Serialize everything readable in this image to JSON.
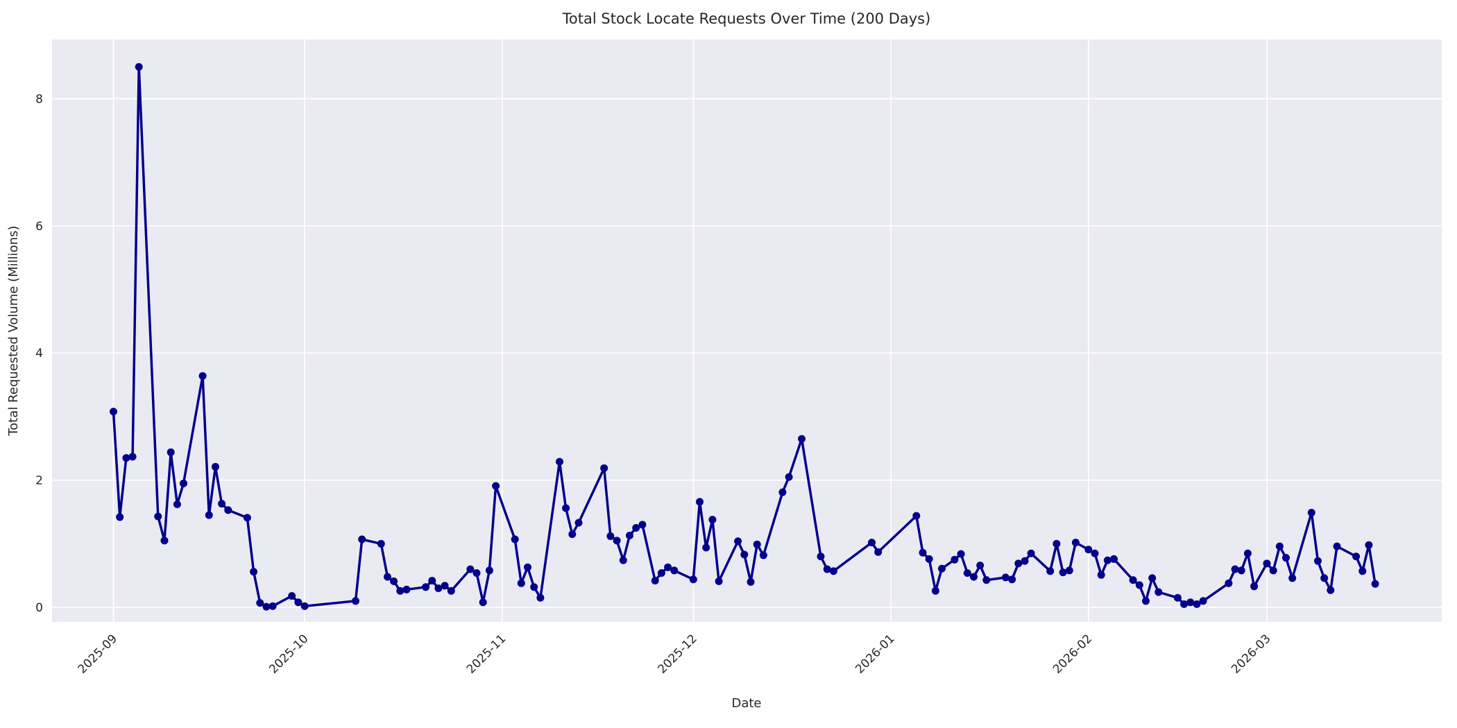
{
  "figure": {
    "background_color": "#ffffff"
  },
  "chart_data": {
    "type": "line",
    "title": "Total Stock Locate Requests Over Time (200 Days)",
    "xlabel": "Date",
    "ylabel": "Total Requested Volume (Millions)",
    "x_tick_labels": [
      "2025-09",
      "2025-10",
      "2025-11",
      "2025-12",
      "2026-01",
      "2026-02",
      "2026-03"
    ],
    "x_tick_dates": [
      "2025-09-01",
      "2025-10-01",
      "2025-11-01",
      "2025-12-01",
      "2026-01-01",
      "2026-02-01",
      "2026-03-01"
    ],
    "y_ticks": [
      0,
      2,
      4,
      6,
      8
    ],
    "ylim": [
      -0.23,
      8.93
    ],
    "start_date": "2025-09-01",
    "span_days": 200,
    "grid": true,
    "legend": false,
    "plot_background": "#EAEAF2",
    "grid_color": "#ffffff",
    "line_color": "#00008B",
    "marker": "circle",
    "series": [
      {
        "name": "Total Requested Volume",
        "dates": [
          "2025-09-01",
          "2025-09-02",
          "2025-09-03",
          "2025-09-04",
          "2025-09-05",
          "2025-09-08",
          "2025-09-09",
          "2025-09-10",
          "2025-09-11",
          "2025-09-12",
          "2025-09-15",
          "2025-09-16",
          "2025-09-17",
          "2025-09-18",
          "2025-09-19",
          "2025-09-22",
          "2025-09-23",
          "2025-09-24",
          "2025-09-25",
          "2025-09-26",
          "2025-09-29",
          "2025-09-30",
          "2025-10-01",
          "2025-10-09",
          "2025-10-10",
          "2025-10-13",
          "2025-10-14",
          "2025-10-15",
          "2025-10-16",
          "2025-10-17",
          "2025-10-20",
          "2025-10-21",
          "2025-10-22",
          "2025-10-23",
          "2025-10-24",
          "2025-10-27",
          "2025-10-28",
          "2025-10-29",
          "2025-10-30",
          "2025-10-31",
          "2025-11-03",
          "2025-11-04",
          "2025-11-05",
          "2025-11-06",
          "2025-11-07",
          "2025-11-10",
          "2025-11-11",
          "2025-11-12",
          "2025-11-13",
          "2025-11-17",
          "2025-11-18",
          "2025-11-19",
          "2025-11-20",
          "2025-11-21",
          "2025-11-22",
          "2025-11-23",
          "2025-11-25",
          "2025-11-26",
          "2025-11-27",
          "2025-11-28",
          "2025-12-01",
          "2025-12-02",
          "2025-12-03",
          "2025-12-04",
          "2025-12-05",
          "2025-12-08",
          "2025-12-09",
          "2025-12-10",
          "2025-12-11",
          "2025-12-12",
          "2025-12-15",
          "2025-12-16",
          "2025-12-18",
          "2025-12-21",
          "2025-12-22",
          "2025-12-23",
          "2025-12-29",
          "2025-12-30",
          "2026-01-05",
          "2026-01-06",
          "2026-01-07",
          "2026-01-08",
          "2026-01-09",
          "2026-01-11",
          "2026-01-12",
          "2026-01-13",
          "2026-01-14",
          "2026-01-15",
          "2026-01-16",
          "2026-01-19",
          "2026-01-20",
          "2026-01-21",
          "2026-01-22",
          "2026-01-23",
          "2026-01-26",
          "2026-01-27",
          "2026-01-28",
          "2026-01-29",
          "2026-01-30",
          "2026-02-01",
          "2026-02-02",
          "2026-02-03",
          "2026-02-04",
          "2026-02-05",
          "2026-02-08",
          "2026-02-09",
          "2026-02-10",
          "2026-02-11",
          "2026-02-12",
          "2026-02-15",
          "2026-02-16",
          "2026-02-17",
          "2026-02-18",
          "2026-02-19",
          "2026-02-23",
          "2026-02-24",
          "2026-02-25",
          "2026-02-26",
          "2026-02-27",
          "2026-03-01",
          "2026-03-02",
          "2026-03-03",
          "2026-03-04",
          "2026-03-05",
          "2026-03-08",
          "2026-03-09",
          "2026-03-10",
          "2026-03-11",
          "2026-03-12",
          "2026-03-15",
          "2026-03-16",
          "2026-03-17",
          "2026-03-18"
        ],
        "values": [
          3.08,
          1.42,
          2.35,
          2.37,
          8.5,
          1.43,
          1.05,
          2.44,
          1.62,
          1.95,
          3.64,
          1.45,
          2.21,
          1.63,
          1.53,
          1.41,
          0.56,
          0.07,
          0.01,
          0.02,
          0.18,
          0.08,
          0.02,
          0.1,
          1.07,
          1.0,
          0.48,
          0.41,
          0.26,
          0.28,
          0.32,
          0.42,
          0.3,
          0.34,
          0.26,
          0.6,
          0.54,
          0.08,
          0.58,
          1.91,
          1.07,
          0.38,
          0.63,
          0.32,
          0.15,
          2.29,
          1.56,
          1.15,
          1.33,
          2.19,
          1.12,
          1.05,
          0.74,
          1.13,
          1.25,
          1.3,
          0.42,
          0.54,
          0.63,
          0.58,
          0.44,
          1.66,
          0.94,
          1.38,
          0.41,
          1.04,
          0.83,
          0.4,
          0.99,
          0.82,
          1.81,
          2.05,
          2.65,
          0.8,
          0.6,
          0.57,
          1.02,
          0.87,
          1.44,
          0.86,
          0.76,
          0.26,
          0.61,
          0.75,
          0.84,
          0.54,
          0.48,
          0.66,
          0.43,
          0.47,
          0.44,
          0.69,
          0.73,
          0.85,
          0.57,
          1.0,
          0.55,
          0.58,
          1.02,
          0.91,
          0.85,
          0.51,
          0.74,
          0.76,
          0.43,
          0.35,
          0.1,
          0.46,
          0.24,
          0.15,
          0.05,
          0.08,
          0.05,
          0.1,
          0.38,
          0.6,
          0.58,
          0.85,
          0.33,
          0.69,
          0.58,
          0.96,
          0.78,
          0.46,
          1.49,
          0.73,
          0.46,
          0.27,
          0.96,
          0.8,
          0.57,
          0.98,
          0.37
        ]
      }
    ]
  }
}
